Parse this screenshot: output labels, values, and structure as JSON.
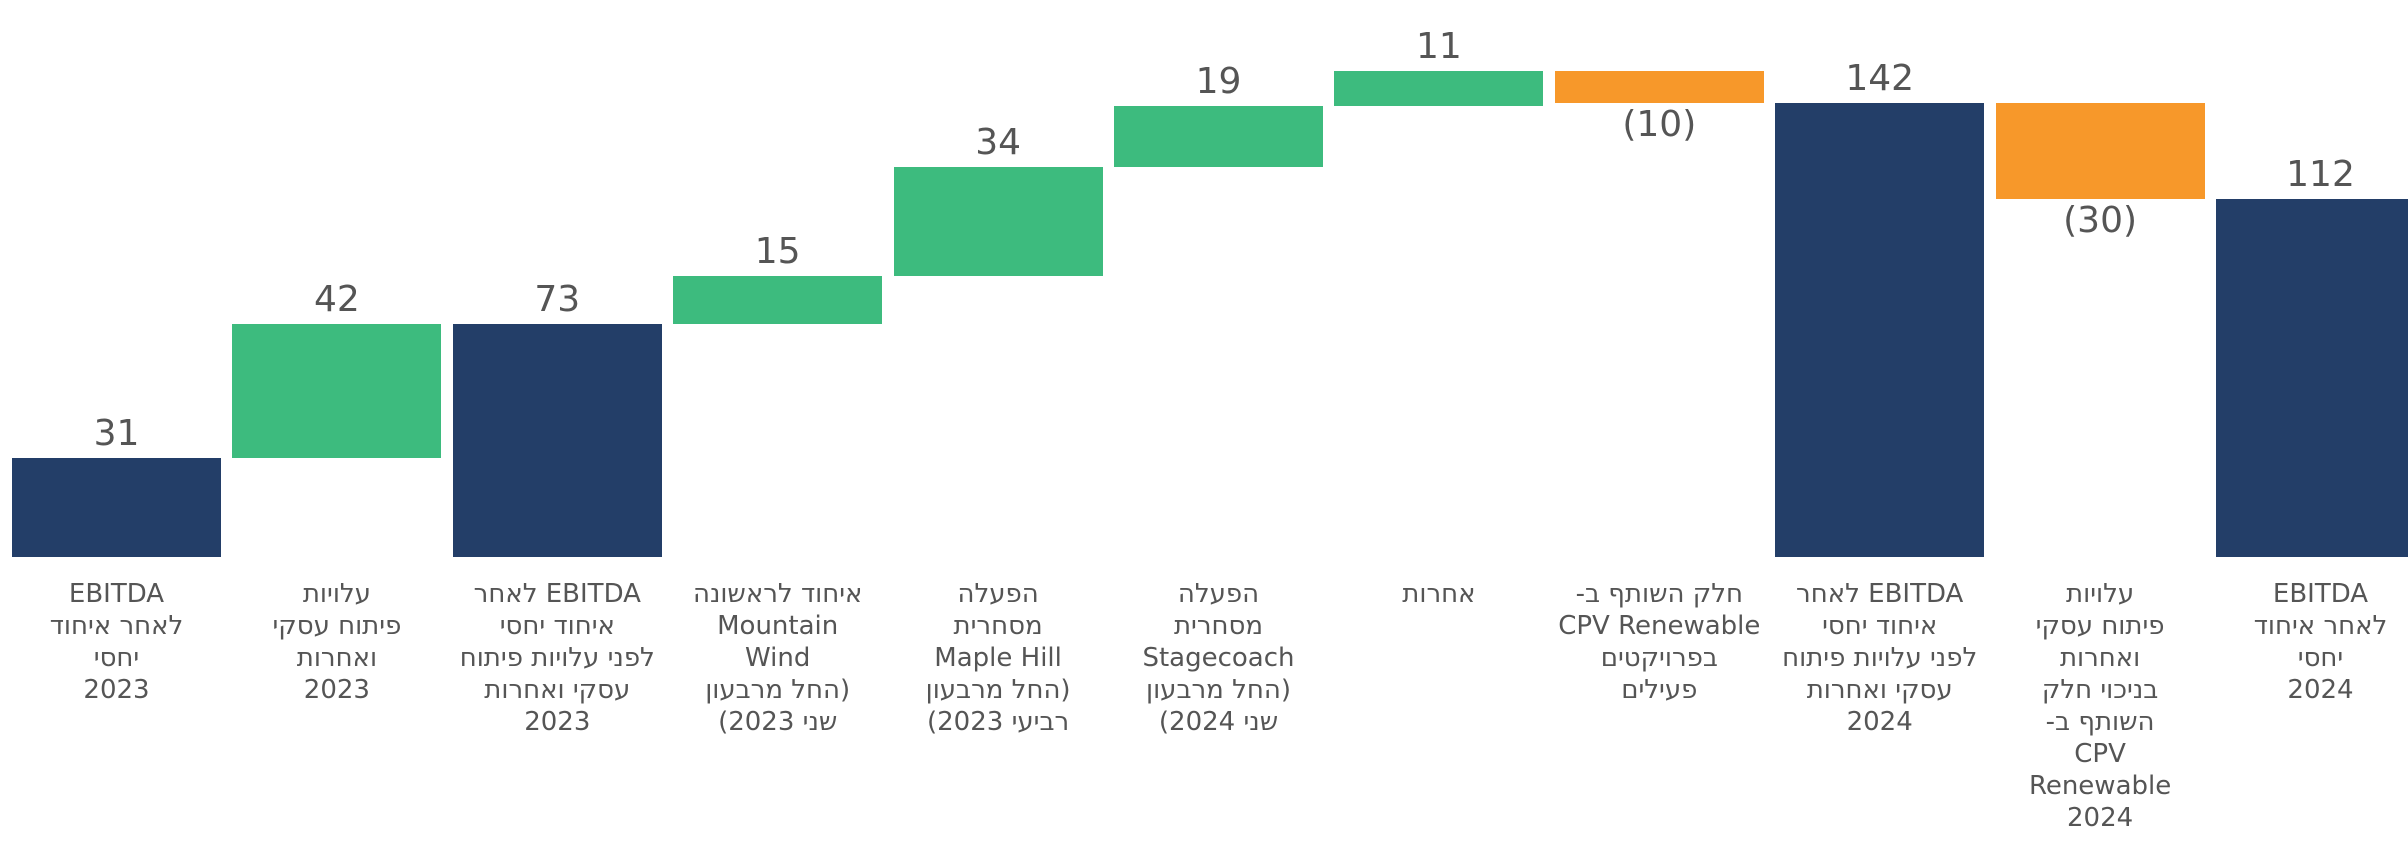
{
  "chart_data": {
    "type": "waterfall",
    "categories": [
      "EBITDA\nלאחר איחוד\nיחסי\n2023",
      "עלויות\nפיתוח עסקי\nואחרות\n2023",
      "EBITDA לאחר\nאיחוד יחסי\nלפני עלויות פיתוח\nעסקי ואחרות\n2023",
      "איחוד לראשונה\nMountain\nWind\n(החל מרבעון\nשני 2023)",
      "הפעלה\nמסחרית\nMaple Hill\n(החל מרבעון\nרביעי 2023)",
      "הפעלה\nמסחרית\nStagecoach\n(החל מרבעון\nשני 2024)",
      "אחרות",
      "חלק השותף ב-\nCPV Renewable\nבפרויקטים\nפעילים",
      "EBITDA לאחר\nאיחוד יחסי\nלפני עלויות פיתוח\nעסקי ואחרות\n2024",
      "עלויות\nפיתוח עסקי\nואחרות\nבניכוי חלק\nהשותף ב-\nCPV\nRenewable\n2024",
      "EBITDA\nלאחר איחוד\nיחסי\n2024"
    ],
    "values": [
      31,
      42,
      73,
      15,
      34,
      19,
      11,
      -10,
      142,
      -30,
      112
    ],
    "value_labels": [
      "31",
      "42",
      "73",
      "15",
      "34",
      "19",
      "11",
      "(10)",
      "142",
      "(30)",
      "112"
    ],
    "measure": [
      "total",
      "relative",
      "total",
      "relative",
      "relative",
      "relative",
      "relative",
      "relative",
      "total",
      "relative",
      "total"
    ],
    "colors": {
      "total": "#233e68",
      "increase": "#3dbb7e",
      "decrease": "#f7982a"
    }
  }
}
